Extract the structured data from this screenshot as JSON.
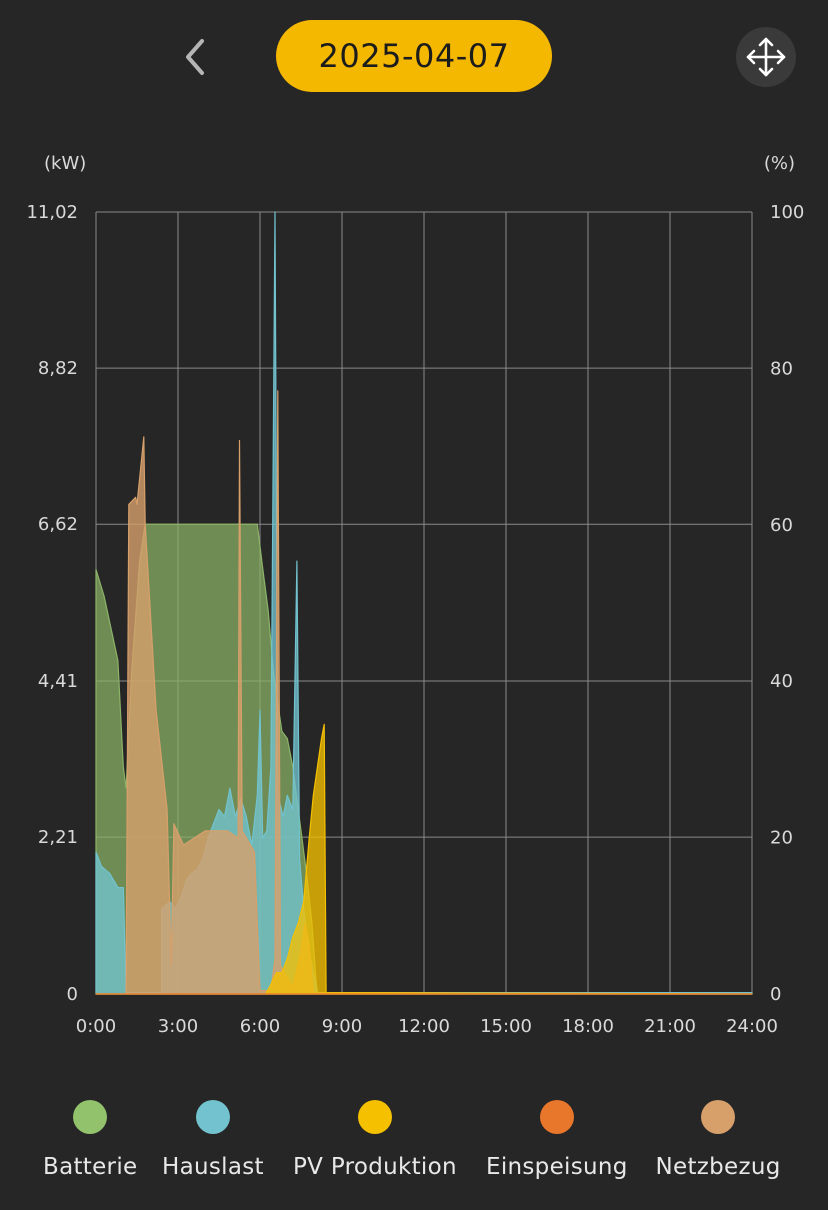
{
  "header": {
    "back_icon": "chevron-left-icon",
    "date": "2025-04-07",
    "move_icon": "move-arrows-icon"
  },
  "chart_data": {
    "type": "area",
    "left_axis": {
      "unit_label": "(kW)",
      "min": 0,
      "max": 11.02,
      "ticks": [
        "0",
        "2,21",
        "4,41",
        "6,62",
        "8,82",
        "11,02"
      ],
      "tick_values": [
        0,
        2.21,
        4.41,
        6.62,
        8.82,
        11.02
      ]
    },
    "right_axis": {
      "unit_label": "(%)",
      "min": 0,
      "max": 100,
      "ticks": [
        "0",
        "20",
        "40",
        "60",
        "80",
        "100"
      ],
      "tick_values": [
        0,
        20,
        40,
        60,
        80,
        100
      ]
    },
    "x_axis": {
      "min": 0,
      "max": 24,
      "ticks": [
        "0:00",
        "3:00",
        "6:00",
        "9:00",
        "12:00",
        "15:00",
        "18:00",
        "21:00",
        "24:00"
      ],
      "tick_values": [
        0,
        3,
        6,
        9,
        12,
        15,
        18,
        21,
        24
      ]
    },
    "grid": true,
    "legend_position": "bottom",
    "series": [
      {
        "name": "Batterie",
        "color": "#8db468",
        "axis": "left",
        "points": [
          [
            0,
            5.98
          ],
          [
            0.3,
            5.6
          ],
          [
            0.8,
            4.7
          ],
          [
            1.0,
            3.2
          ],
          [
            1.1,
            2.9
          ],
          [
            1.3,
            4.5
          ],
          [
            1.6,
            6.1
          ],
          [
            1.8,
            6.62
          ],
          [
            2.5,
            6.62
          ],
          [
            3.5,
            6.62
          ],
          [
            4.5,
            6.62
          ],
          [
            5.5,
            6.62
          ],
          [
            5.9,
            6.62
          ],
          [
            6.1,
            6.0
          ],
          [
            6.3,
            5.4
          ],
          [
            6.5,
            4.5
          ],
          [
            6.8,
            3.7
          ],
          [
            7.0,
            3.6
          ],
          [
            7.2,
            3.2
          ],
          [
            7.5,
            2.3
          ],
          [
            7.7,
            1.7
          ],
          [
            7.9,
            1.0
          ],
          [
            8.05,
            0.2
          ],
          [
            8.1,
            0.02
          ],
          [
            24,
            0.02
          ]
        ]
      },
      {
        "name": "Hauslast",
        "color": "#72c3cf",
        "axis": "left",
        "points": [
          [
            0,
            2.0
          ],
          [
            0.2,
            1.8
          ],
          [
            0.5,
            1.7
          ],
          [
            0.8,
            1.5
          ],
          [
            1.0,
            1.5
          ],
          [
            1.1,
            0.02
          ],
          [
            2.4,
            0.02
          ],
          [
            2.4,
            1.2
          ],
          [
            2.7,
            1.3
          ],
          [
            2.9,
            1.2
          ],
          [
            3.1,
            1.35
          ],
          [
            3.3,
            1.6
          ],
          [
            3.5,
            1.7
          ],
          [
            3.7,
            1.75
          ],
          [
            3.9,
            1.9
          ],
          [
            4.1,
            2.2
          ],
          [
            4.3,
            2.4
          ],
          [
            4.5,
            2.6
          ],
          [
            4.7,
            2.5
          ],
          [
            4.9,
            2.9
          ],
          [
            5.1,
            2.5
          ],
          [
            5.3,
            2.75
          ],
          [
            5.5,
            2.5
          ],
          [
            5.7,
            2.1
          ],
          [
            5.9,
            2.8
          ],
          [
            6.0,
            4.0
          ],
          [
            6.1,
            2.2
          ],
          [
            6.25,
            2.3
          ],
          [
            6.4,
            3.2
          ],
          [
            6.55,
            11.02
          ],
          [
            6.65,
            2.8
          ],
          [
            6.85,
            2.5
          ],
          [
            7.0,
            2.8
          ],
          [
            7.2,
            2.6
          ],
          [
            7.35,
            6.1
          ],
          [
            7.45,
            1.9
          ],
          [
            7.6,
            1.2
          ],
          [
            7.8,
            0.6
          ],
          [
            7.95,
            0.3
          ],
          [
            8.1,
            0.02
          ],
          [
            24,
            0.02
          ]
        ]
      },
      {
        "name": "PV Produktion",
        "color": "#f5c000",
        "axis": "left",
        "points": [
          [
            0,
            0
          ],
          [
            6.2,
            0
          ],
          [
            6.35,
            0.1
          ],
          [
            6.6,
            0.3
          ],
          [
            6.8,
            0.3
          ],
          [
            7.0,
            0.5
          ],
          [
            7.2,
            0.8
          ],
          [
            7.4,
            1.0
          ],
          [
            7.6,
            1.3
          ],
          [
            7.8,
            2.2
          ],
          [
            7.95,
            2.8
          ],
          [
            8.1,
            3.2
          ],
          [
            8.25,
            3.6
          ],
          [
            8.35,
            3.8
          ],
          [
            8.42,
            0.02
          ],
          [
            24,
            0
          ]
        ]
      },
      {
        "name": "Einspeisung",
        "color": "#e8762b",
        "axis": "left",
        "points": [
          [
            0,
            0
          ],
          [
            24,
            0
          ]
        ]
      },
      {
        "name": "Netzbezug",
        "color": "#d7a06b",
        "axis": "left",
        "points": [
          [
            0,
            0
          ],
          [
            1.1,
            0
          ],
          [
            1.2,
            6.9
          ],
          [
            1.45,
            7.0
          ],
          [
            1.5,
            6.9
          ],
          [
            1.75,
            7.85
          ],
          [
            1.8,
            6.62
          ],
          [
            2.2,
            4.0
          ],
          [
            2.6,
            2.6
          ],
          [
            2.75,
            0.4
          ],
          [
            2.85,
            2.4
          ],
          [
            3.2,
            2.1
          ],
          [
            4.0,
            2.3
          ],
          [
            4.8,
            2.3
          ],
          [
            5.2,
            2.2
          ],
          [
            5.25,
            7.8
          ],
          [
            5.35,
            2.3
          ],
          [
            5.8,
            2.0
          ],
          [
            6.0,
            0.05
          ],
          [
            6.4,
            0.05
          ],
          [
            6.55,
            0.5
          ],
          [
            6.65,
            8.5
          ],
          [
            6.75,
            0.4
          ],
          [
            7.2,
            0.1
          ],
          [
            7.5,
            0.6
          ],
          [
            7.65,
            1.0
          ],
          [
            7.8,
            0.7
          ],
          [
            7.95,
            0.02
          ],
          [
            24,
            0
          ]
        ]
      }
    ]
  },
  "legend": [
    {
      "label": "Batterie",
      "color": "#93c26c",
      "icon": "green-dot-icon"
    },
    {
      "label": "Hauslast",
      "color": "#72c3cf",
      "icon": "blue-dot-icon"
    },
    {
      "label": "PV Produktion",
      "color": "#f5c000",
      "icon": "yellow-dot-icon"
    },
    {
      "label": "Einspeisung",
      "color": "#e8762b",
      "icon": "orange-dot-icon"
    },
    {
      "label": "Netzbezug",
      "color": "#d7a06b",
      "icon": "tan-dot-icon"
    }
  ]
}
